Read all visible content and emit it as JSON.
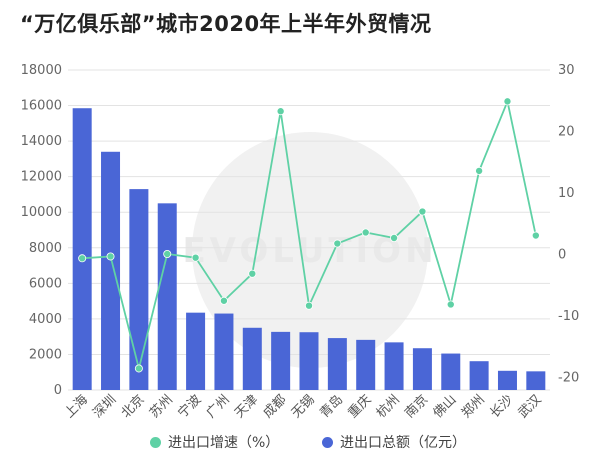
{
  "chart_data": {
    "type": "bar",
    "title": "“万亿俱乐部”城市2020年上半年外贸情况",
    "categories": [
      "上海",
      "深圳",
      "北京",
      "苏州",
      "宁波",
      "广州",
      "天津",
      "成都",
      "无锡",
      "青岛",
      "重庆",
      "杭州",
      "南京",
      "佛山",
      "郑州",
      "长沙",
      "武汉"
    ],
    "series": [
      {
        "name": "进出口总额（亿元）",
        "type": "bar",
        "axis": "left",
        "color": "#4A66D6",
        "values": [
          15850,
          13400,
          11300,
          10500,
          4350,
          4300,
          3500,
          3270,
          3250,
          2920,
          2820,
          2680,
          2350,
          2050,
          1620,
          1080,
          1050
        ]
      },
      {
        "name": "进出口增速（%）",
        "type": "line",
        "axis": "right",
        "color": "#5FD1A5",
        "values": [
          -0.6,
          -0.3,
          -18.5,
          0.1,
          -0.5,
          -7.5,
          -3.1,
          23.3,
          -8.3,
          1.8,
          3.6,
          2.7,
          7.0,
          -8.1,
          13.6,
          24.9,
          3.1
        ]
      }
    ],
    "y_left": {
      "ylim": [
        0,
        18000
      ],
      "ticks": [
        0,
        2000,
        4000,
        6000,
        8000,
        10000,
        12000,
        14000,
        16000,
        18000
      ]
    },
    "y_right": {
      "ylim": [
        -22,
        30
      ],
      "ticks": [
        -20,
        -10,
        0,
        10,
        20,
        30
      ]
    },
    "grid": true,
    "legend_position": "bottom"
  },
  "watermark_text": "EVOLUTION"
}
